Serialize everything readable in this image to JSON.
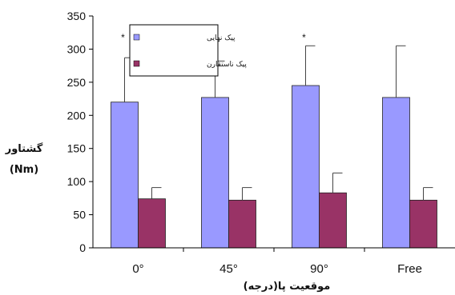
{
  "chart_data": {
    "type": "bar",
    "categories": [
      "0°",
      "45°",
      "90°",
      "Free"
    ],
    "series": [
      {
        "name": "پیک نهایی",
        "values": [
          220,
          227,
          245,
          227
        ],
        "errors": [
          67,
          55,
          60,
          78
        ],
        "color": "#9999ff"
      },
      {
        "name": "پیک ناستقارن",
        "values": [
          74,
          72,
          83,
          72
        ],
        "errors": [
          17,
          19,
          30,
          19
        ],
        "color": "#993366"
      }
    ],
    "significance": [
      "*",
      "",
      "*",
      ""
    ],
    "ylim": [
      0,
      350
    ],
    "yticks": [
      0,
      50,
      100,
      150,
      200,
      250,
      300,
      350
    ],
    "ylabel": [
      "گشتاور",
      "(Nm)"
    ],
    "xlabel": "موقعیت پا(درجه)",
    "legend_position": "top-left",
    "grid": false
  }
}
